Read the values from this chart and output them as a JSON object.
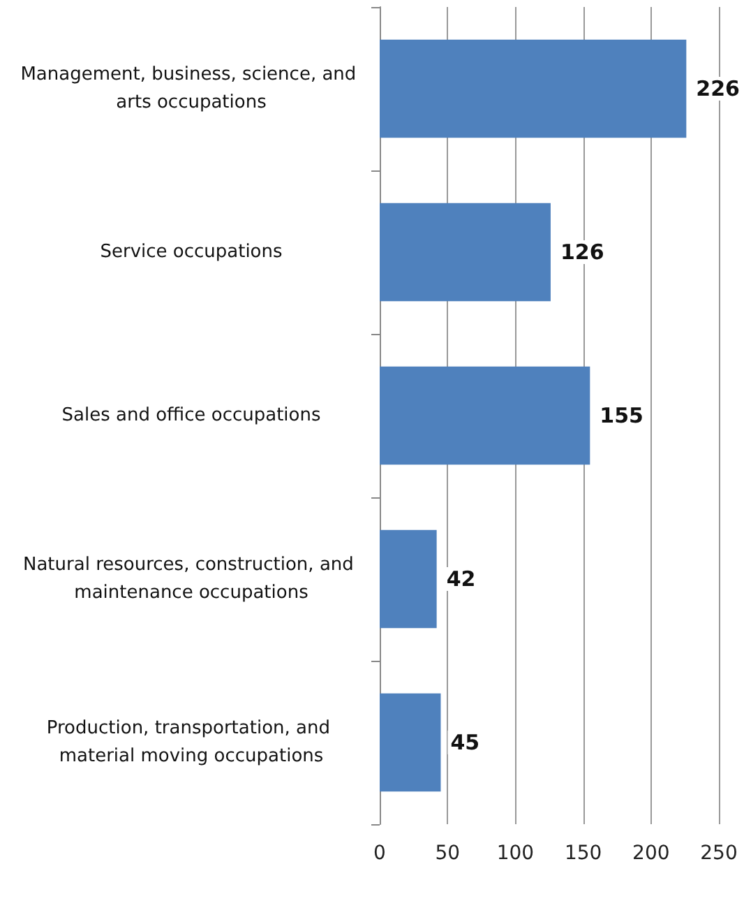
{
  "chart_data": {
    "type": "bar",
    "orientation": "horizontal",
    "categories": [
      "Management, business, science, and arts occupations",
      "Service occupations",
      "Sales and office occupations",
      "Natural resources, construction, and maintenance occupations",
      "Production, transportation, and material moving occupations"
    ],
    "values": [
      226,
      126,
      155,
      42,
      45
    ],
    "color": "#4f81bd",
    "xlim": [
      0,
      250
    ],
    "xticks": [
      0,
      50,
      100,
      150,
      200,
      250
    ],
    "grid": "x",
    "data_labels": true
  }
}
